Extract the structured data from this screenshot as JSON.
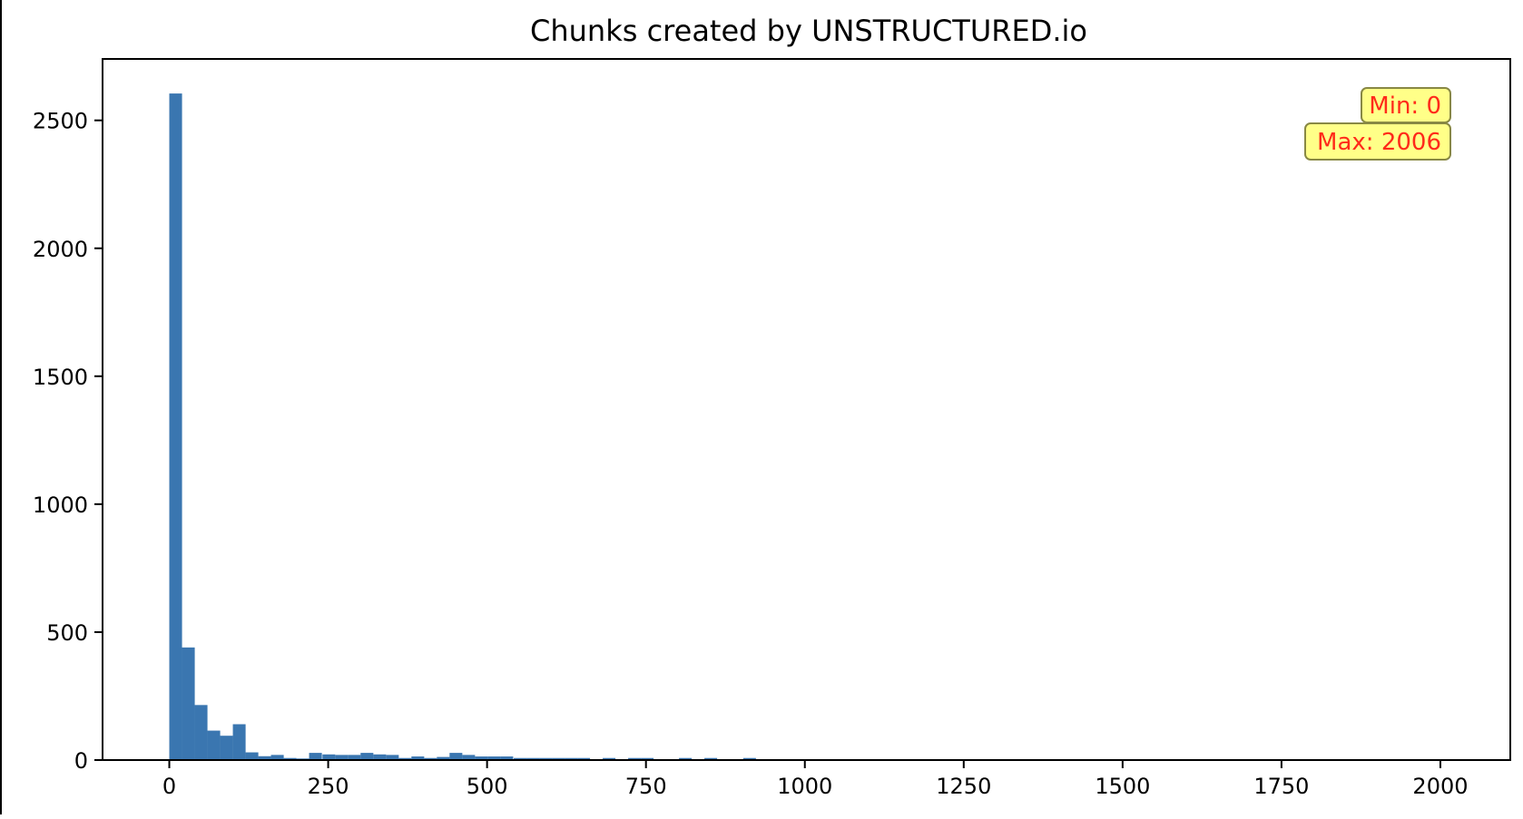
{
  "chart_data": {
    "type": "bar",
    "title": "Chunks created by UNSTRUCTURED.io",
    "xlabel": "",
    "ylabel": "",
    "xlim": [
      -105,
      2110
    ],
    "ylim": [
      0,
      2740
    ],
    "x_ticks": [
      0,
      250,
      500,
      750,
      1000,
      1250,
      1500,
      1750,
      2000
    ],
    "y_ticks": [
      0,
      500,
      1000,
      1500,
      2000,
      2500
    ],
    "grid": false,
    "bar_color": "#3a76b0",
    "bin_width": 20.06,
    "bins": [
      {
        "x0": 0,
        "count": 2605
      },
      {
        "x0": 20,
        "count": 440
      },
      {
        "x0": 40,
        "count": 215
      },
      {
        "x0": 60,
        "count": 115
      },
      {
        "x0": 80,
        "count": 95
      },
      {
        "x0": 100,
        "count": 140
      },
      {
        "x0": 120,
        "count": 30
      },
      {
        "x0": 140,
        "count": 15
      },
      {
        "x0": 160,
        "count": 20
      },
      {
        "x0": 180,
        "count": 8
      },
      {
        "x0": 200,
        "count": 6
      },
      {
        "x0": 220,
        "count": 28
      },
      {
        "x0": 241,
        "count": 22
      },
      {
        "x0": 261,
        "count": 20
      },
      {
        "x0": 281,
        "count": 20
      },
      {
        "x0": 301,
        "count": 28
      },
      {
        "x0": 321,
        "count": 22
      },
      {
        "x0": 341,
        "count": 20
      },
      {
        "x0": 361,
        "count": 8
      },
      {
        "x0": 381,
        "count": 14
      },
      {
        "x0": 401,
        "count": 8
      },
      {
        "x0": 421,
        "count": 12
      },
      {
        "x0": 441,
        "count": 28
      },
      {
        "x0": 461,
        "count": 20
      },
      {
        "x0": 481,
        "count": 14
      },
      {
        "x0": 501,
        "count": 14
      },
      {
        "x0": 521,
        "count": 14
      },
      {
        "x0": 542,
        "count": 8
      },
      {
        "x0": 562,
        "count": 8
      },
      {
        "x0": 582,
        "count": 8
      },
      {
        "x0": 602,
        "count": 8
      },
      {
        "x0": 622,
        "count": 8
      },
      {
        "x0": 642,
        "count": 8
      },
      {
        "x0": 682,
        "count": 8
      },
      {
        "x0": 722,
        "count": 8
      },
      {
        "x0": 742,
        "count": 8
      },
      {
        "x0": 802,
        "count": 8
      },
      {
        "x0": 842,
        "count": 8
      },
      {
        "x0": 903,
        "count": 8
      }
    ],
    "annotations": [
      {
        "text": "Min: 0"
      },
      {
        "text": "Max: 2006"
      }
    ]
  }
}
